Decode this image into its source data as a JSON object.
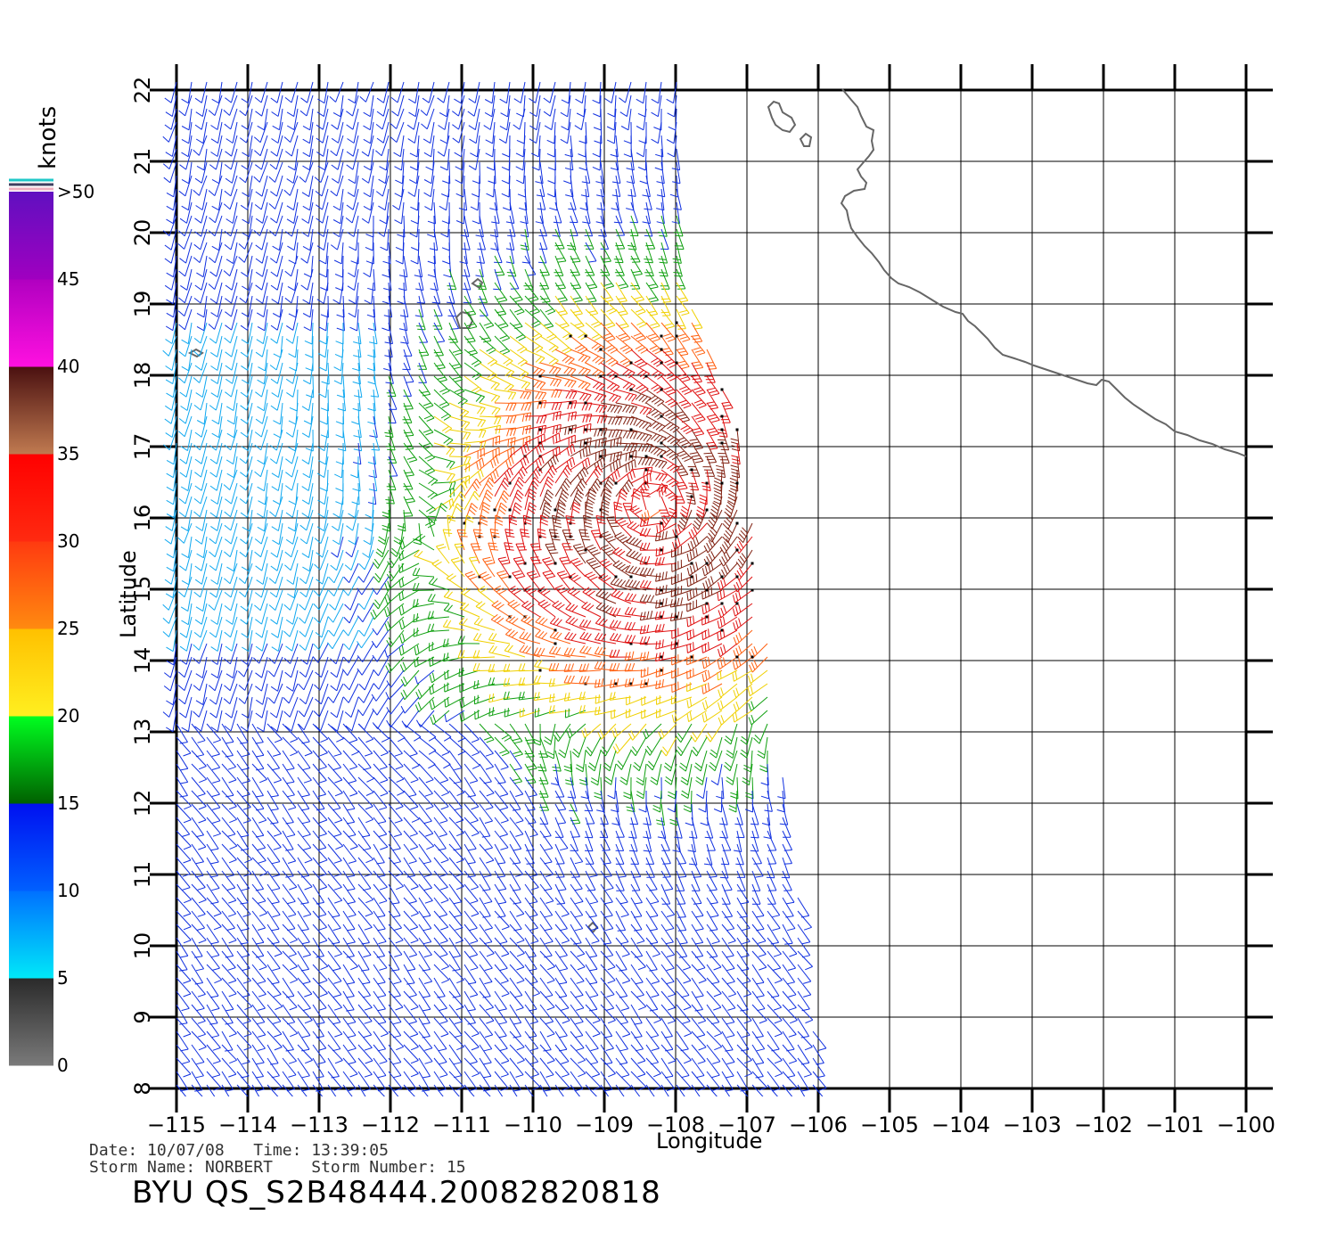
{
  "colorbar": {
    "unit_label": "knots",
    "bands": [
      {
        "label": "0",
        "color_low": "#7a7a7a",
        "color_high": "#2a2a2a"
      },
      {
        "label": "5",
        "color_low": "#00e8f8",
        "color_high": "#0070ff"
      },
      {
        "label": "10",
        "color_low": "#0060ff",
        "color_high": "#0010f0"
      },
      {
        "label": "15",
        "color_low": "#006000",
        "color_high": "#00ff20"
      },
      {
        "label": "20",
        "color_low": "#ffef20",
        "color_high": "#ffc000"
      },
      {
        "label": "25",
        "color_low": "#ff8a10",
        "color_high": "#ff3a10"
      },
      {
        "label": "30",
        "color_low": "#ff2a10",
        "color_high": "#ff0000"
      },
      {
        "label": "35",
        "color_low": "#c07a50",
        "color_high": "#4a1010"
      },
      {
        "label": "40",
        "color_low": "#ff10e0",
        "color_high": "#b000c0"
      },
      {
        "label": "45",
        "color_low": "#a000c0",
        "color_high": "#6010c0"
      },
      {
        "label": ">50",
        "color_low": "",
        "color_high": ""
      }
    ]
  },
  "axes": {
    "x_title": "Longitude",
    "y_title": "Latitude",
    "lon_ticks": [
      "−115",
      "−114",
      "−113",
      "−112",
      "−111",
      "−110",
      "−109",
      "−108",
      "−107",
      "−106",
      "−105",
      "−104",
      "−103",
      "−102",
      "−101",
      "−100"
    ],
    "lat_ticks": [
      "8",
      "9",
      "10",
      "11",
      "12",
      "13",
      "14",
      "15",
      "16",
      "17",
      "18",
      "19",
      "20",
      "21",
      "22"
    ],
    "lon_range": [
      -115,
      -100
    ],
    "lat_range": [
      8,
      22
    ]
  },
  "storm": {
    "center_lon": -108.3,
    "center_lat": 16.2,
    "swath": "lon -115 to about -106, lat 8 to 22"
  },
  "footer": {
    "date_line": "Date: 10/07/08   Time: 13:39:05",
    "storm_line": "Storm Name: NORBERT    Storm Number: 15",
    "product": "BYU QS_S2B48444.20082820818"
  }
}
